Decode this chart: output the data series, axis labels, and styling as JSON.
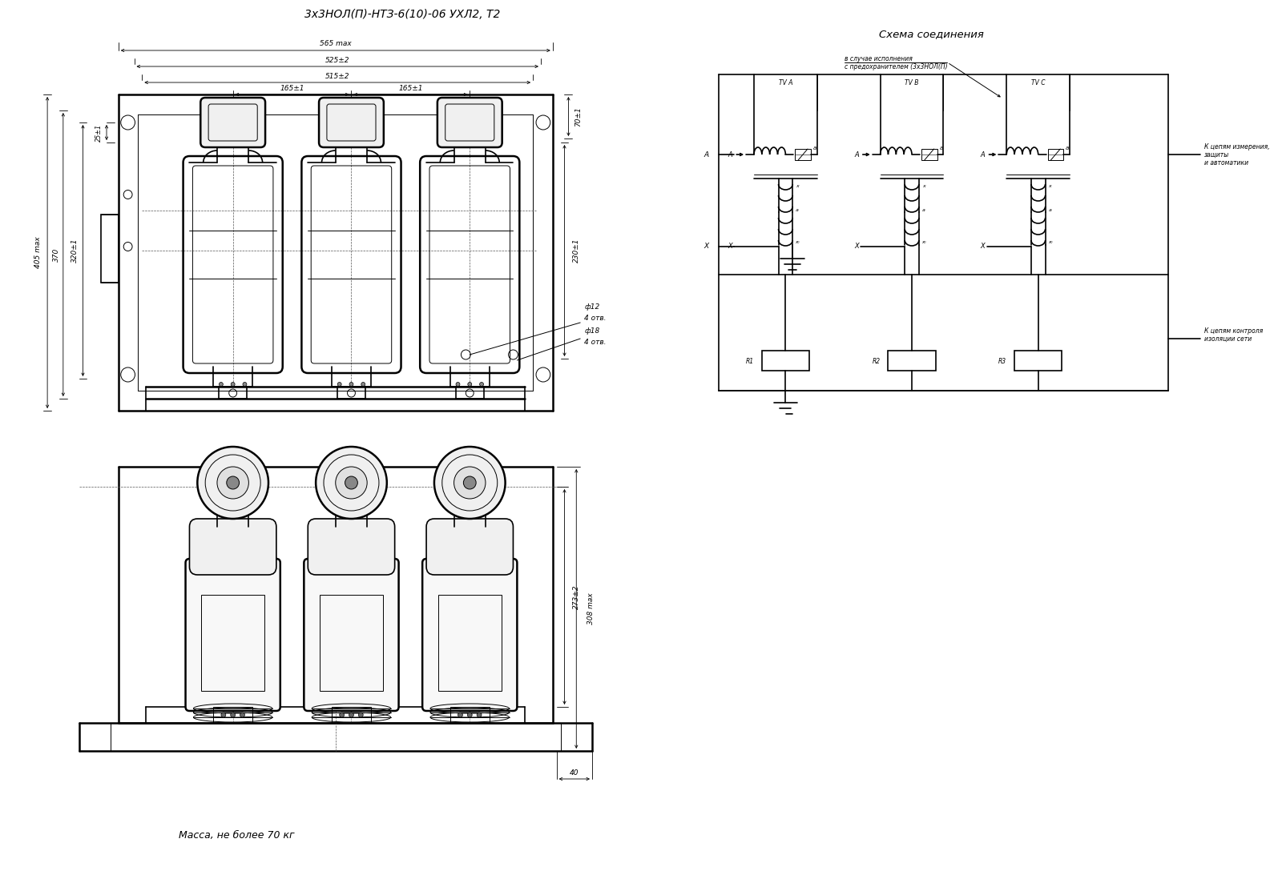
{
  "title": "3x3НОЛ(П)-НТЗ-6(10)-06 УХЛ2, Т2",
  "bg_color": "#ffffff",
  "line_color": "#000000",
  "fig_width": 16.0,
  "fig_height": 10.88,
  "mass_text": "Масса, не более 70 кг",
  "schema_title": "Схема соединения",
  "schema_note1": "в случае исполнения",
  "schema_note2": "с предохранителем (3x3НОЛ(П)",
  "dim_labels": {
    "d565": "565 max",
    "d525": "525±2",
    "d515": "515±2",
    "d165a": "165±1",
    "d165b": "165±1",
    "d70": "70±1",
    "d25": "25±1",
    "d405": "405 max",
    "d370": "370",
    "d320": "320±1",
    "d230": "230±1",
    "dphi12": "ф12",
    "d4otv1": "4 отв.",
    "dphi18": "ф18",
    "d4otv2": "4 отв.",
    "d273": "273±2",
    "d308": "308 max",
    "d40": "40"
  }
}
